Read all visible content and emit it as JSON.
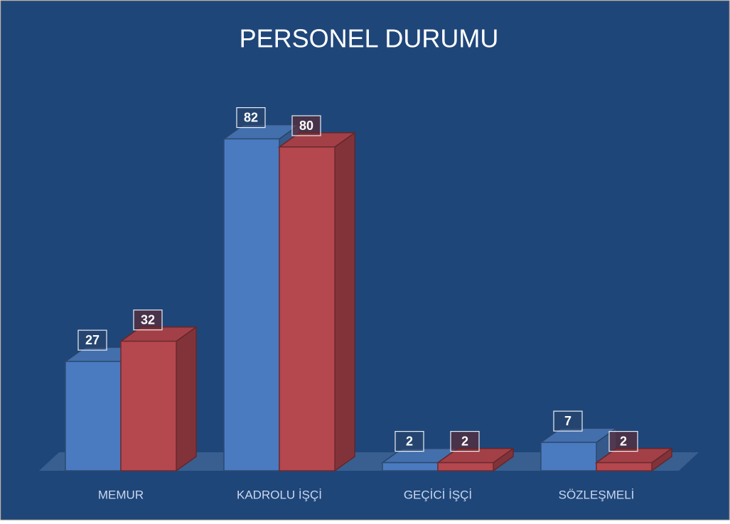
{
  "chart_data": {
    "type": "bar3d",
    "title": "PERSONEL DURUMU",
    "categories": [
      "MEMUR",
      "KADROLU İŞÇİ",
      "GEÇİCİ İŞÇİ",
      "SÖZLEŞMELİ"
    ],
    "series": [
      {
        "color": "#4a7bc0",
        "values": [
          27,
          82,
          2,
          7
        ]
      },
      {
        "color": "#b5474f",
        "values": [
          32,
          80,
          2,
          2
        ]
      }
    ]
  }
}
